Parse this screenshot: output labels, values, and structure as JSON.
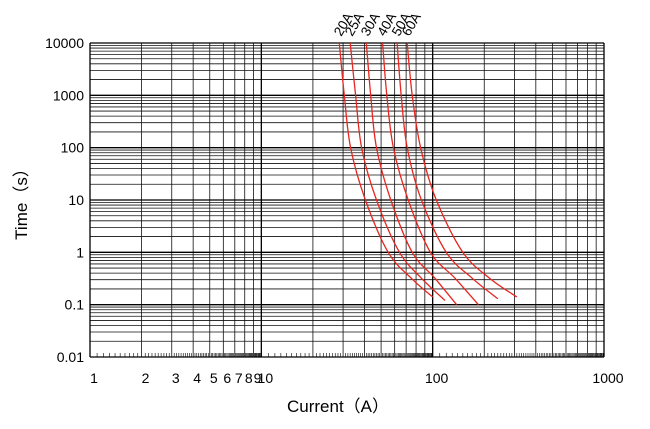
{
  "chart_data": {
    "type": "line",
    "xlabel": "Current（A）",
    "ylabel": "Time（s）",
    "x_scale": "log",
    "y_scale": "log",
    "xlim": [
      1,
      1000
    ],
    "ylim": [
      0.01,
      10000
    ],
    "grid": true,
    "x_tick_labels": [
      "1",
      "2",
      "3",
      "4",
      "5",
      "6",
      "7",
      "8",
      "9",
      "10",
      "100",
      "1000"
    ],
    "x_tick_values": [
      1,
      2,
      3,
      4,
      5,
      6,
      7,
      8,
      9,
      10,
      100,
      1000
    ],
    "y_tick_labels": [
      "10000",
      "1000",
      "100",
      "10",
      "1",
      "0.1",
      "0.01"
    ],
    "y_tick_values": [
      10000,
      1000,
      100,
      10,
      1,
      0.1,
      0.01
    ],
    "line_color": "#e8251f",
    "series": [
      {
        "name": "20A",
        "x": [
          28.5,
          30.5,
          33.2,
          40.5,
          55,
          75,
          100
        ],
        "y": [
          10000,
          1000,
          100,
          10,
          1,
          0.32,
          0.14
        ]
      },
      {
        "name": "25A",
        "x": [
          33,
          35.5,
          38.5,
          47,
          64,
          86,
          118
        ],
        "y": [
          10000,
          1000,
          100,
          10,
          1,
          0.32,
          0.12
        ]
      },
      {
        "name": "30A",
        "x": [
          41,
          43.5,
          47,
          57,
          76,
          103,
          138
        ],
        "y": [
          10000,
          1000,
          100,
          10,
          1,
          0.32,
          0.1
        ]
      },
      {
        "name": "40A",
        "x": [
          51,
          54,
          59,
          72,
          97,
          135,
          185
        ],
        "y": [
          10000,
          1000,
          100,
          10,
          1,
          0.32,
          0.1
        ]
      },
      {
        "name": "50A",
        "x": [
          62,
          65.5,
          71,
          86,
          120,
          170,
          240
        ],
        "y": [
          10000,
          1000,
          100,
          10,
          1,
          0.32,
          0.13
        ]
      },
      {
        "name": "60A",
        "x": [
          71,
          76,
          85,
          105,
          150,
          215,
          310
        ],
        "y": [
          10000,
          1000,
          100,
          10,
          1,
          0.32,
          0.14
        ]
      }
    ]
  }
}
